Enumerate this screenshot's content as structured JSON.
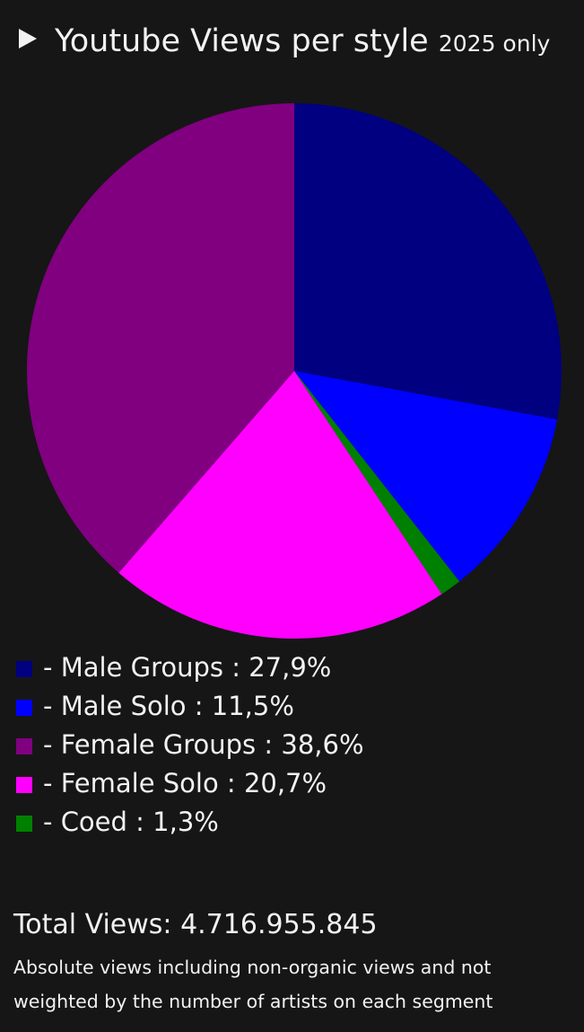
{
  "chart_data": {
    "type": "pie",
    "title": "Youtube Views per style",
    "subtitle": "2025 only",
    "categories": [
      "Male Groups",
      "Male Solo",
      "Coed",
      "Female Solo",
      "Female Groups"
    ],
    "values": [
      27.9,
      11.5,
      1.3,
      20.7,
      38.6
    ],
    "value_labels": [
      "27,9%",
      "11,5%",
      "1,3%",
      "20,7%",
      "38,6%"
    ],
    "colors": [
      "#000080",
      "#0000ff",
      "#008000",
      "#ff00ff",
      "#800080"
    ],
    "total": "Total Views: 4.716.955.845",
    "note": "Absolute views including non-organic views and not weighted by the number of artists on each segment"
  }
}
